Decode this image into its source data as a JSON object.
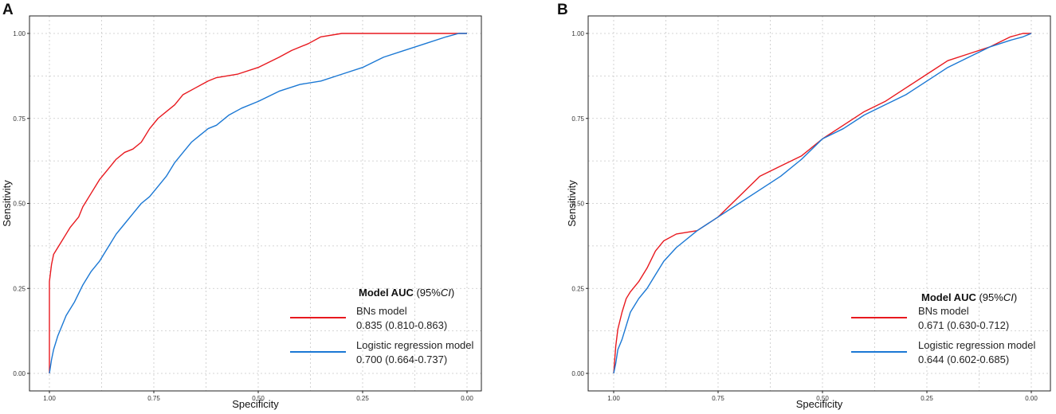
{
  "colors": {
    "bns": "#e8191f",
    "logistic": "#1b78d4"
  },
  "chart_data": [
    {
      "panel": "A",
      "type": "line",
      "xlabel": "Specificity",
      "ylabel": "Sensitivity",
      "xlim": [
        1.0,
        0.0
      ],
      "ylim": [
        0.0,
        1.0
      ],
      "x_ticks": [
        "1.00",
        "0.75",
        "0.50",
        "0.25",
        "0.00"
      ],
      "y_ticks": [
        "0.00",
        "0.25",
        "0.50",
        "0.75",
        "1.00"
      ],
      "grid": true,
      "legend": {
        "position": "bottom-right",
        "title_bold": "Model AUC",
        "title_rest": " (95%",
        "title_ci": "CI",
        "title_close": ")",
        "entries": [
          {
            "name": "BNs model",
            "auc": "0.835 (0.810-0.863)"
          },
          {
            "name": "Logistic regression model",
            "auc": "0.700 (0.664-0.737)"
          }
        ]
      },
      "series": [
        {
          "name": "BNs model",
          "color": "#e8191f",
          "specificity": [
            1.0,
            1.0,
            0.995,
            0.99,
            0.98,
            0.97,
            0.96,
            0.95,
            0.93,
            0.92,
            0.9,
            0.88,
            0.86,
            0.84,
            0.82,
            0.8,
            0.78,
            0.76,
            0.74,
            0.72,
            0.7,
            0.68,
            0.65,
            0.62,
            0.6,
            0.55,
            0.5,
            0.45,
            0.42,
            0.38,
            0.35,
            0.3,
            0.25,
            0.2,
            0.1,
            0.0
          ],
          "sensitivity": [
            0.0,
            0.27,
            0.32,
            0.35,
            0.37,
            0.39,
            0.41,
            0.43,
            0.46,
            0.49,
            0.53,
            0.57,
            0.6,
            0.63,
            0.65,
            0.66,
            0.68,
            0.72,
            0.75,
            0.77,
            0.79,
            0.82,
            0.84,
            0.86,
            0.87,
            0.88,
            0.9,
            0.93,
            0.95,
            0.97,
            0.99,
            1.0,
            1.0,
            1.0,
            1.0,
            1.0
          ]
        },
        {
          "name": "Logistic regression model",
          "color": "#1b78d4",
          "specificity": [
            1.0,
            0.995,
            0.99,
            0.98,
            0.97,
            0.96,
            0.94,
            0.92,
            0.9,
            0.88,
            0.86,
            0.84,
            0.82,
            0.8,
            0.78,
            0.76,
            0.74,
            0.72,
            0.7,
            0.68,
            0.66,
            0.64,
            0.62,
            0.6,
            0.57,
            0.54,
            0.5,
            0.45,
            0.4,
            0.35,
            0.3,
            0.25,
            0.2,
            0.15,
            0.1,
            0.05,
            0.02,
            0.0
          ],
          "sensitivity": [
            0.0,
            0.04,
            0.07,
            0.11,
            0.14,
            0.17,
            0.21,
            0.26,
            0.3,
            0.33,
            0.37,
            0.41,
            0.44,
            0.47,
            0.5,
            0.52,
            0.55,
            0.58,
            0.62,
            0.65,
            0.68,
            0.7,
            0.72,
            0.73,
            0.76,
            0.78,
            0.8,
            0.83,
            0.85,
            0.86,
            0.88,
            0.9,
            0.93,
            0.95,
            0.97,
            0.99,
            1.0,
            1.0
          ]
        }
      ]
    },
    {
      "panel": "B",
      "type": "line",
      "xlabel": "Specificity",
      "ylabel": "Sensitivity",
      "xlim": [
        1.0,
        0.0
      ],
      "ylim": [
        0.0,
        1.0
      ],
      "x_ticks": [
        "1.00",
        "0.75",
        "0.50",
        "0.25",
        "0.00"
      ],
      "y_ticks": [
        "0.00",
        "0.25",
        "0.50",
        "0.75",
        "1.00"
      ],
      "grid": true,
      "legend": {
        "position": "bottom-right",
        "title_bold": "Model AUC",
        "title_rest": " (95%",
        "title_ci": "CI",
        "title_close": ")",
        "entries": [
          {
            "name": "BNs model",
            "auc": "0.671 (0.630-0.712)"
          },
          {
            "name": "Logistic regression model",
            "auc": "0.644 (0.602-0.685)"
          }
        ]
      },
      "series": [
        {
          "name": "BNs model",
          "color": "#e8191f",
          "specificity": [
            1.0,
            0.995,
            0.99,
            0.98,
            0.97,
            0.96,
            0.94,
            0.92,
            0.9,
            0.88,
            0.85,
            0.8,
            0.75,
            0.7,
            0.65,
            0.6,
            0.55,
            0.5,
            0.45,
            0.4,
            0.35,
            0.3,
            0.25,
            0.2,
            0.15,
            0.1,
            0.05,
            0.02,
            0.0
          ],
          "sensitivity": [
            0.0,
            0.08,
            0.13,
            0.18,
            0.22,
            0.24,
            0.27,
            0.31,
            0.36,
            0.39,
            0.41,
            0.42,
            0.46,
            0.52,
            0.58,
            0.61,
            0.64,
            0.69,
            0.73,
            0.77,
            0.8,
            0.84,
            0.88,
            0.92,
            0.94,
            0.96,
            0.99,
            1.0,
            1.0
          ]
        },
        {
          "name": "Logistic regression model",
          "color": "#1b78d4",
          "specificity": [
            1.0,
            0.995,
            0.99,
            0.98,
            0.97,
            0.96,
            0.94,
            0.92,
            0.9,
            0.88,
            0.85,
            0.8,
            0.75,
            0.7,
            0.65,
            0.6,
            0.55,
            0.5,
            0.45,
            0.4,
            0.35,
            0.3,
            0.25,
            0.2,
            0.15,
            0.1,
            0.05,
            0.02,
            0.0
          ],
          "sensitivity": [
            0.0,
            0.03,
            0.07,
            0.1,
            0.14,
            0.18,
            0.22,
            0.25,
            0.29,
            0.33,
            0.37,
            0.42,
            0.46,
            0.5,
            0.54,
            0.58,
            0.63,
            0.69,
            0.72,
            0.76,
            0.79,
            0.82,
            0.86,
            0.9,
            0.93,
            0.96,
            0.98,
            0.99,
            1.0
          ]
        }
      ]
    }
  ]
}
